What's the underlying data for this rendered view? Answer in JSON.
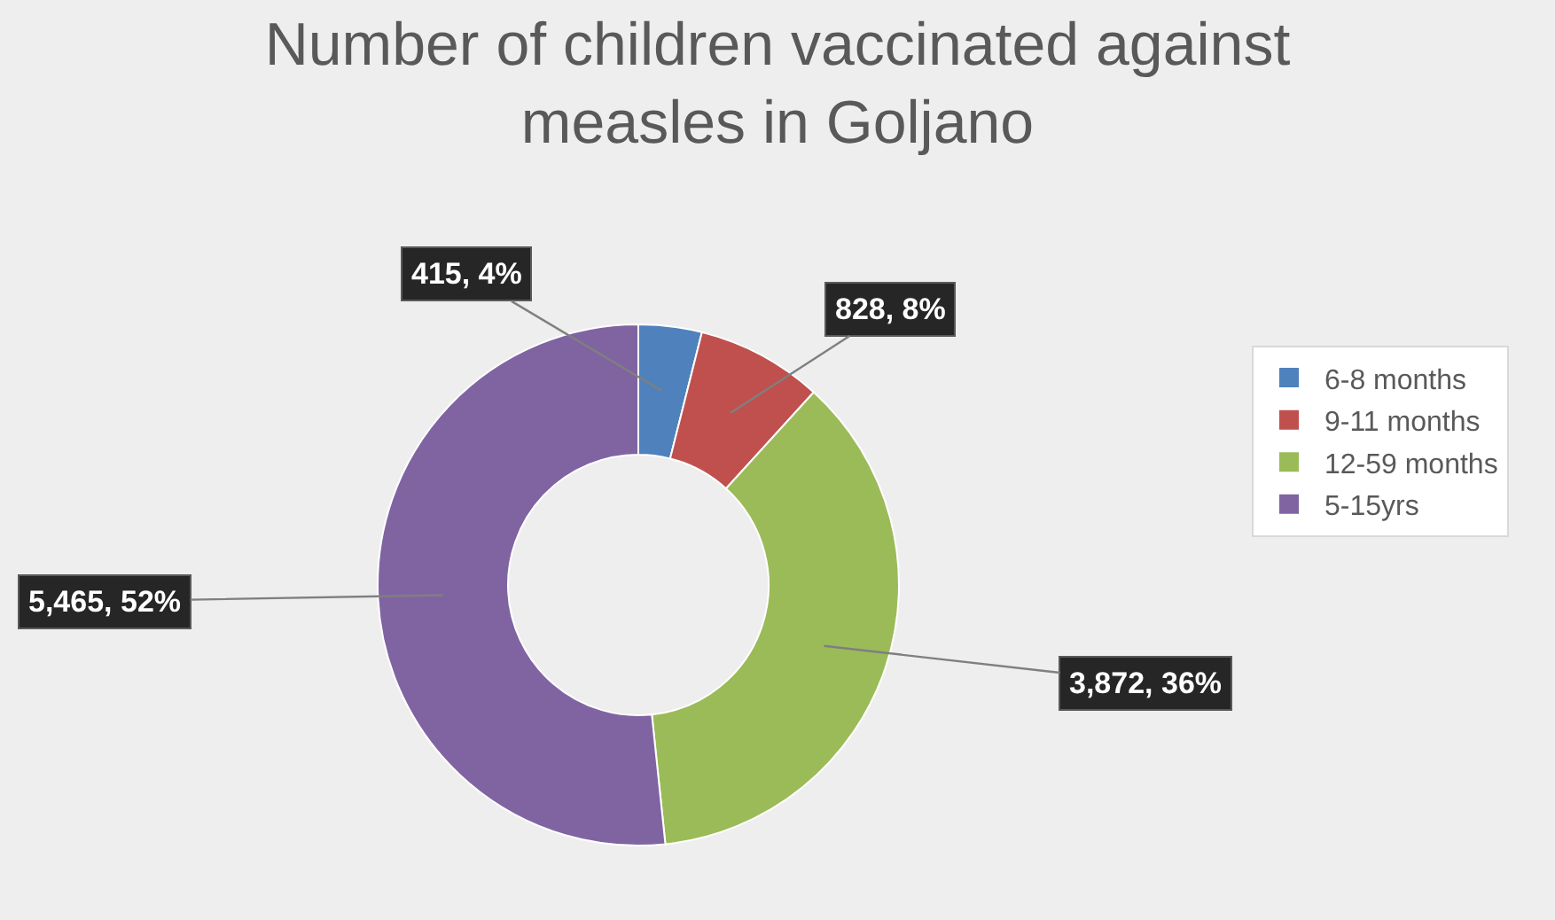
{
  "chart_data": {
    "type": "donut",
    "title": "Number of children vaccinated against measles in Goljano",
    "categories": [
      "6-8 months",
      "9-11 months",
      "12-59 months",
      "5-15yrs"
    ],
    "values": [
      415,
      828,
      3872,
      5465
    ],
    "colors": [
      "#4f81bd",
      "#c0504d",
      "#9bbb59",
      "#8064a2"
    ],
    "value_labels": [
      "415, 4%",
      "828, 8%",
      "3,872, 36%",
      "5,465, 52%"
    ],
    "legend": "right"
  }
}
